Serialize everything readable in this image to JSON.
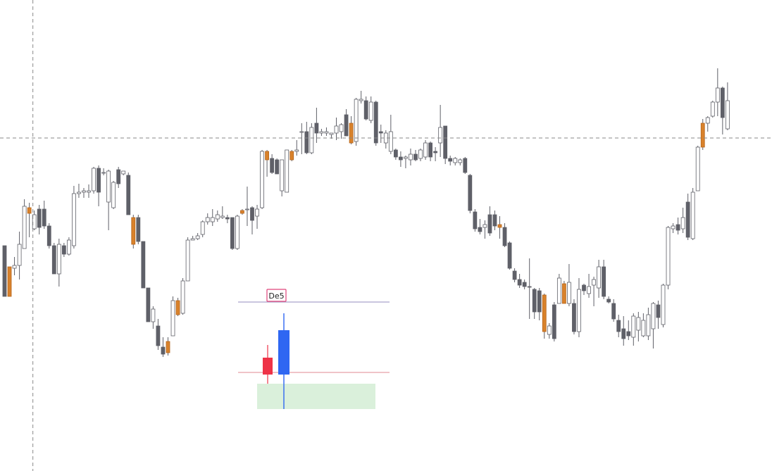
{
  "chart_data": {
    "type": "candlestick",
    "title": "",
    "xlabel": "",
    "ylabel": "",
    "ylim": [
      0,
      669
    ],
    "grid": false,
    "colors": {
      "bull": "#ffffff",
      "bear": "#5f6068",
      "marked": "#d9822b",
      "outline": "#5f6068",
      "crosshair": "#8a8a8a",
      "pattern_bear": "#ee3347",
      "pattern_bull": "#2f67f2",
      "level_top": "#a9a3cc",
      "level_bottom": "#e8a0a8",
      "zone": "#daf0db",
      "badge_border": "#e0447a"
    },
    "crosshair": {
      "x_index": 6,
      "y": 471
    },
    "candles": [
      [
        0,
        349,
        349,
        421,
        421,
        "down"
      ],
      [
        1,
        379,
        379,
        421,
        421,
        "marked"
      ],
      [
        2,
        365,
        377,
        381,
        391,
        "up"
      ],
      [
        3,
        329,
        347,
        377,
        397,
        "up"
      ],
      [
        4,
        283,
        293,
        353,
        353,
        "up"
      ],
      [
        5,
        288,
        295,
        303,
        337,
        "marked"
      ],
      [
        6,
        299,
        305,
        325,
        327,
        "up"
      ],
      [
        7,
        291,
        297,
        323,
        333,
        "down"
      ],
      [
        8,
        285,
        297,
        321,
        325,
        "down"
      ],
      [
        9,
        317,
        321,
        349,
        353,
        "down"
      ],
      [
        10,
        345,
        349,
        389,
        389,
        "down"
      ],
      [
        11,
        339,
        347,
        389,
        407,
        "up"
      ],
      [
        12,
        345,
        349,
        361,
        365,
        "down"
      ],
      [
        13,
        337,
        341,
        361,
        363,
        "up"
      ],
      [
        14,
        264,
        275,
        349,
        353,
        "up"
      ],
      [
        15,
        261,
        273,
        275,
        281,
        "up"
      ],
      [
        16,
        267,
        271,
        273,
        281,
        "up"
      ],
      [
        17,
        262,
        271,
        273,
        281,
        "up"
      ],
      [
        18,
        237,
        239,
        271,
        275,
        "up"
      ],
      [
        19,
        235,
        239,
        273,
        293,
        "down"
      ],
      [
        20,
        239,
        245,
        245,
        249,
        "up"
      ],
      [
        21,
        241,
        243,
        287,
        327,
        "up"
      ],
      [
        22,
        257,
        259,
        295,
        297,
        "up"
      ],
      [
        23,
        237,
        241,
        261,
        267,
        "down"
      ],
      [
        24,
        243,
        243,
        247,
        249,
        "up"
      ],
      [
        25,
        245,
        249,
        305,
        305,
        "down"
      ],
      [
        26,
        305,
        309,
        347,
        353,
        "marked"
      ],
      [
        27,
        305,
        309,
        343,
        347,
        "down"
      ],
      [
        28,
        343,
        343,
        409,
        409,
        "down"
      ],
      [
        29,
        409,
        409,
        457,
        457,
        "down"
      ],
      [
        30,
        435,
        439,
        457,
        467,
        "up"
      ],
      [
        31,
        453,
        463,
        491,
        497,
        "down"
      ],
      [
        32,
        479,
        493,
        503,
        507,
        "down"
      ],
      [
        33,
        479,
        485,
        501,
        505,
        "marked"
      ],
      [
        34,
        421,
        427,
        477,
        477,
        "up"
      ],
      [
        35,
        423,
        427,
        447,
        449,
        "marked"
      ],
      [
        36,
        395,
        399,
        445,
        447,
        "up"
      ],
      [
        37,
        337,
        341,
        399,
        399,
        "up"
      ],
      [
        38,
        335,
        339,
        341,
        341,
        "up"
      ],
      [
        39,
        331,
        335,
        339,
        341,
        "up"
      ],
      [
        40,
        313,
        315,
        333,
        337,
        "up"
      ],
      [
        41,
        303,
        309,
        315,
        319,
        "up"
      ],
      [
        42,
        297,
        309,
        315,
        321,
        "up"
      ],
      [
        43,
        299,
        305,
        311,
        315,
        "up"
      ],
      [
        44,
        293,
        307,
        309,
        311,
        "up"
      ],
      [
        45,
        305,
        309,
        311,
        317,
        "down"
      ],
      [
        46,
        309,
        309,
        353,
        355,
        "down"
      ],
      [
        47,
        305,
        307,
        353,
        355,
        "up"
      ],
      [
        48,
        297,
        299,
        303,
        305,
        "marked"
      ],
      [
        49,
        265,
        297,
        297,
        321,
        "up"
      ],
      [
        50,
        293,
        295,
        313,
        333,
        "down"
      ],
      [
        51,
        291,
        297,
        307,
        325,
        "up"
      ],
      [
        52,
        213,
        215,
        295,
        297,
        "up"
      ],
      [
        53,
        213,
        215,
        227,
        251,
        "marked"
      ],
      [
        54,
        219,
        225,
        245,
        247,
        "down"
      ],
      [
        55,
        225,
        227,
        247,
        247,
        "down"
      ],
      [
        56,
        227,
        227,
        271,
        279,
        "up"
      ],
      [
        57,
        213,
        213,
        273,
        273,
        "up"
      ],
      [
        58,
        213,
        215,
        227,
        229,
        "marked"
      ],
      [
        59,
        199,
        213,
        215,
        221,
        "up"
      ],
      [
        60,
        175,
        187,
        187,
        219,
        "up"
      ],
      [
        61,
        173,
        187,
        217,
        219,
        "down"
      ],
      [
        62,
        175,
        181,
        217,
        219,
        "up"
      ],
      [
        63,
        153,
        175,
        189,
        203,
        "down"
      ],
      [
        64,
        183,
        187,
        189,
        193,
        "up"
      ],
      [
        65,
        181,
        187,
        189,
        193,
        "up"
      ],
      [
        66,
        189,
        189,
        191,
        197,
        "up"
      ],
      [
        67,
        167,
        179,
        189,
        199,
        "up"
      ],
      [
        68,
        175,
        177,
        187,
        197,
        "up"
      ],
      [
        69,
        155,
        163,
        193,
        193,
        "down"
      ],
      [
        70,
        165,
        175,
        203,
        205,
        "marked"
      ],
      [
        71,
        139,
        141,
        201,
        207,
        "up"
      ],
      [
        72,
        129,
        141,
        143,
        147,
        "up"
      ],
      [
        73,
        137,
        143,
        169,
        171,
        "down"
      ],
      [
        74,
        137,
        145,
        171,
        175,
        "up"
      ],
      [
        75,
        143,
        145,
        203,
        207,
        "down"
      ],
      [
        76,
        177,
        187,
        189,
        203,
        "down"
      ],
      [
        77,
        185,
        189,
        203,
        211,
        "up"
      ],
      [
        78,
        163,
        187,
        215,
        219,
        "up"
      ],
      [
        79,
        211,
        213,
        223,
        227,
        "down"
      ],
      [
        80,
        215,
        223,
        227,
        237,
        "down"
      ],
      [
        81,
        221,
        223,
        225,
        239,
        "up"
      ],
      [
        82,
        211,
        219,
        227,
        235,
        "up"
      ],
      [
        83,
        213,
        219,
        227,
        229,
        "down"
      ],
      [
        84,
        211,
        213,
        225,
        229,
        "up"
      ],
      [
        85,
        199,
        203,
        223,
        227,
        "up"
      ],
      [
        86,
        201,
        203,
        223,
        229,
        "down"
      ],
      [
        87,
        209,
        215,
        217,
        229,
        "down"
      ],
      [
        88,
        149,
        181,
        203,
        223,
        "up"
      ],
      [
        89,
        179,
        179,
        225,
        233,
        "down"
      ],
      [
        90,
        221,
        225,
        229,
        235,
        "down"
      ],
      [
        91,
        223,
        225,
        231,
        235,
        "up"
      ],
      [
        92,
        225,
        227,
        231,
        235,
        "up"
      ],
      [
        93,
        223,
        225,
        245,
        247,
        "down"
      ],
      [
        94,
        247,
        249,
        299,
        303,
        "down"
      ],
      [
        95,
        297,
        301,
        325,
        329,
        "down"
      ],
      [
        96,
        311,
        323,
        329,
        333,
        "down"
      ],
      [
        97,
        313,
        319,
        323,
        339,
        "up"
      ],
      [
        98,
        293,
        305,
        331,
        335,
        "down"
      ],
      [
        99,
        299,
        305,
        321,
        327,
        "down"
      ],
      [
        100,
        307,
        319,
        323,
        339,
        "marked"
      ],
      [
        101,
        317,
        323,
        349,
        351,
        "down"
      ],
      [
        102,
        343,
        345,
        381,
        383,
        "down"
      ],
      [
        103,
        381,
        385,
        397,
        401,
        "down"
      ],
      [
        104,
        389,
        397,
        405,
        409,
        "down"
      ],
      [
        105,
        397,
        401,
        407,
        411,
        "down"
      ],
      [
        106,
        367,
        407,
        407,
        453,
        "down"
      ],
      [
        107,
        409,
        411,
        443,
        453,
        "down"
      ],
      [
        108,
        409,
        413,
        443,
        455,
        "down"
      ],
      [
        109,
        417,
        419,
        471,
        481,
        "marked"
      ],
      [
        110,
        459,
        463,
        475,
        481,
        "up"
      ],
      [
        111,
        429,
        433,
        481,
        485,
        "down"
      ],
      [
        112,
        389,
        395,
        431,
        431,
        "up"
      ],
      [
        113,
        399,
        403,
        431,
        431,
        "marked"
      ],
      [
        114,
        375,
        401,
        431,
        435,
        "up"
      ],
      [
        115,
        425,
        431,
        471,
        475,
        "down"
      ],
      [
        116,
        395,
        411,
        471,
        479,
        "up"
      ],
      [
        117,
        403,
        405,
        413,
        419,
        "down"
      ],
      [
        118,
        389,
        407,
        417,
        423,
        "up"
      ],
      [
        119,
        393,
        397,
        405,
        435,
        "up"
      ],
      [
        120,
        369,
        379,
        409,
        423,
        "up"
      ],
      [
        121,
        369,
        379,
        421,
        425,
        "down"
      ],
      [
        122,
        421,
        425,
        429,
        431,
        "down"
      ],
      [
        123,
        425,
        431,
        453,
        457,
        "down"
      ],
      [
        124,
        447,
        455,
        471,
        479,
        "down"
      ],
      [
        125,
        449,
        467,
        481,
        491,
        "down"
      ],
      [
        126,
        455,
        471,
        477,
        483,
        "down"
      ],
      [
        127,
        445,
        449,
        479,
        491,
        "up"
      ],
      [
        128,
        443,
        451,
        469,
        485,
        "up"
      ],
      [
        129,
        445,
        455,
        477,
        479,
        "up"
      ],
      [
        130,
        437,
        447,
        477,
        483,
        "up"
      ],
      [
        131,
        429,
        431,
        467,
        495,
        "up"
      ],
      [
        132,
        427,
        433,
        451,
        467,
        "down"
      ],
      [
        133,
        403,
        405,
        461,
        465,
        "up"
      ],
      [
        134,
        321,
        323,
        405,
        411,
        "up"
      ],
      [
        135,
        317,
        321,
        325,
        331,
        "up"
      ],
      [
        136,
        309,
        319,
        327,
        333,
        "down"
      ],
      [
        137,
        295,
        309,
        325,
        331,
        "up"
      ],
      [
        138,
        275,
        287,
        337,
        341,
        "down"
      ],
      [
        139,
        267,
        273,
        339,
        341,
        "up"
      ],
      [
        140,
        207,
        209,
        271,
        271,
        "up"
      ],
      [
        141,
        169,
        175,
        209,
        213,
        "marked"
      ],
      [
        142,
        165,
        167,
        175,
        187,
        "up"
      ],
      [
        143,
        143,
        145,
        165,
        167,
        "up"
      ],
      [
        144,
        97,
        125,
        145,
        165,
        "up"
      ],
      [
        145,
        123,
        125,
        167,
        191,
        "down"
      ],
      [
        146,
        117,
        143,
        183,
        185,
        "up"
      ]
    ],
    "reference_line_y": 196,
    "pattern": {
      "label": "De5",
      "level_top_y": 429,
      "level_bottom_y": 529,
      "zone": [
        545,
        581
      ],
      "bear": [
        490,
        508,
        532,
        545
      ],
      "bull": [
        445,
        469,
        532,
        581
      ]
    }
  }
}
